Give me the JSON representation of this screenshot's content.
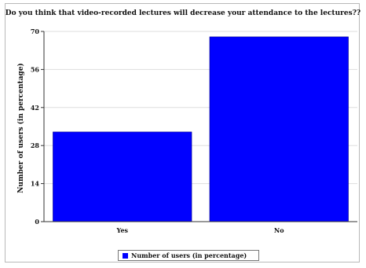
{
  "chart_data": {
    "type": "bar",
    "title": "Do you think that video-recorded lectures will decrease your attendance to the lectures??",
    "xlabel": "",
    "ylabel": "Number of users (in percentage)",
    "categories": [
      "Yes",
      "No"
    ],
    "series": [
      {
        "name": "Number of users (in percentage)",
        "values": [
          33,
          68
        ],
        "color": "#0000ff"
      }
    ],
    "ylim": [
      0,
      70
    ],
    "yticks": [
      0,
      14,
      28,
      42,
      56,
      70
    ],
    "grid": true,
    "legend_position": "bottom"
  }
}
